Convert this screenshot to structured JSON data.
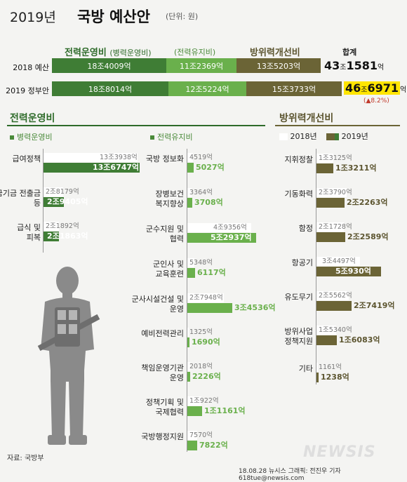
{
  "title": {
    "year": "2019년",
    "main": "국방 예산안",
    "unit": "(단위: 원)"
  },
  "top": {
    "headers": {
      "operating": "전력운영비",
      "operating_sub": "(병력운영비)",
      "maintenance_sub": "(전력유지비)",
      "defense_improvement": "방위력개선비",
      "total": "합계"
    },
    "rows": [
      {
        "label": "2018 예산",
        "personnel": "18조4009억",
        "maintenance": "11조2369억",
        "improvement": "13조5203억",
        "total_jo": "43",
        "total_rest": "1581",
        "total_unit1": "조",
        "total_unit2": "억",
        "highlight": false
      },
      {
        "label": "2019 정부안",
        "personnel": "18조8014억",
        "maintenance": "12조5224억",
        "improvement": "15조3733억",
        "total_jo": "46",
        "total_rest": "6971",
        "total_unit1": "조",
        "total_unit2": "억",
        "highlight": true
      }
    ],
    "delta": "(▲8.2%)"
  },
  "sections": {
    "operating_title": "전력운영비",
    "personnel_head": "병력운영비",
    "maintenance_head": "전력유지비",
    "improvement_title": "방위력개선비",
    "legend_2018": "2018년",
    "legend_2019": "2019년"
  },
  "colors": {
    "personnel": "#3f7d35",
    "personnel_light": "#4f8e43",
    "maintenance": "#6ab04c",
    "improvement": "#6b6436",
    "total_highlight": "#ffe500"
  },
  "chart_data": [
    {
      "type": "bar",
      "title": "병력운영비",
      "unit": "억원",
      "categories": [
        "급여정책",
        "연금기금 전출금 등",
        "급식 및 피복"
      ],
      "series": [
        {
          "name": "2018년",
          "values": [
            133938,
            28179,
            21892
          ],
          "labels": [
            "13조3938억",
            "2조8179억",
            "2조1892억"
          ]
        },
        {
          "name": "2019년",
          "values": [
            136747,
            29405,
            21863
          ],
          "labels": [
            "13조6747억",
            "2조9405억",
            "2조1863억"
          ]
        }
      ]
    },
    {
      "type": "bar",
      "title": "전력유지비",
      "unit": "억원",
      "categories": [
        "국방 정보화",
        "장병보건 복지향상",
        "군수지원 및 협력",
        "군인사 및 교육훈련",
        "군사시설건설 및 운영",
        "예비전력관리",
        "책임운영기관 운영",
        "정책기획 및 국제협력",
        "국방행정지원"
      ],
      "series": [
        {
          "name": "2018년",
          "values": [
            4519,
            3364,
            49356,
            5348,
            27948,
            1325,
            2018,
            10922,
            7570
          ],
          "labels": [
            "4519억",
            "3364억",
            "4조9356억",
            "5348억",
            "2조7948억",
            "1325억",
            "2018억",
            "1조922억",
            "7570억"
          ]
        },
        {
          "name": "2019년",
          "values": [
            5027,
            3708,
            52937,
            6117,
            34536,
            1690,
            2226,
            11161,
            7822
          ],
          "labels": [
            "5027억",
            "3708억",
            "5조2937억",
            "6117억",
            "3조4536억",
            "1690억",
            "2226억",
            "1조1161억",
            "7822억"
          ]
        }
      ]
    },
    {
      "type": "bar",
      "title": "방위력개선비",
      "unit": "억원",
      "categories": [
        "지휘정찰",
        "기동화력",
        "함정",
        "항공기",
        "유도무기",
        "방위사업 정책지원",
        "기타"
      ],
      "series": [
        {
          "name": "2018년",
          "values": [
            13125,
            23790,
            21728,
            34497,
            25562,
            15340,
            1161
          ],
          "labels": [
            "1조3125억",
            "2조3790억",
            "2조1728억",
            "3조4497억",
            "2조5562억",
            "1조5340억",
            "1161억"
          ]
        },
        {
          "name": "2019년",
          "values": [
            13211,
            22263,
            22589,
            50930,
            27419,
            16083,
            1238
          ],
          "labels": [
            "1조3211억",
            "2조2263억",
            "2조2589억",
            "5조930억",
            "2조7419억",
            "1조6083억",
            "1238억"
          ]
        }
      ]
    }
  ],
  "footer": {
    "source": "자료: 국방부",
    "credit": "18.08.28  뉴시스 그래픽:  전진우 기자  618tue@newsis.com",
    "watermark": "NEWSIS"
  }
}
